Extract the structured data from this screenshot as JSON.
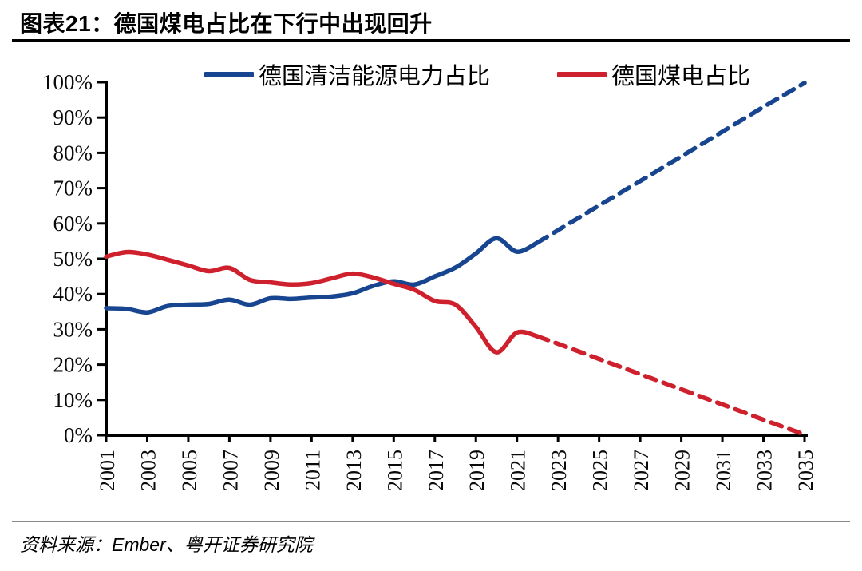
{
  "header": {
    "title": "图表21：德国煤电占比在下行中出现回升"
  },
  "legend": {
    "items": [
      {
        "label": "德国清洁能源电力占比",
        "color": "#17458f"
      },
      {
        "label": "德国煤电占比",
        "color": "#ce202d"
      }
    ]
  },
  "footer": {
    "source": "资料来源：Ember、粤开证券研究院"
  },
  "chart_data": {
    "type": "line",
    "title": "图表21：德国煤电占比在下行中出现回升",
    "xlabel": "",
    "ylabel": "",
    "xlim": [
      2001,
      2035
    ],
    "ylim": [
      0,
      100
    ],
    "grid": false,
    "legend_position": "top",
    "ytick_labels": [
      "0%",
      "10%",
      "20%",
      "30%",
      "40%",
      "50%",
      "60%",
      "70%",
      "80%",
      "90%",
      "100%"
    ],
    "xtick_labels": [
      "2001",
      "2003",
      "2005",
      "2007",
      "2009",
      "2011",
      "2013",
      "2015",
      "2017",
      "2019",
      "2021",
      "2023",
      "2025",
      "2027",
      "2029",
      "2031",
      "2033",
      "2035"
    ],
    "series": [
      {
        "name": "德国清洁能源电力占比",
        "color": "#17458f",
        "solid": {
          "x": [
            2001,
            2002,
            2003,
            2004,
            2005,
            2006,
            2007,
            2008,
            2009,
            2010,
            2011,
            2012,
            2013,
            2014,
            2015,
            2016,
            2017,
            2018,
            2019,
            2020,
            2021,
            2022
          ],
          "y": [
            36.0,
            35.8,
            34.8,
            36.6,
            37.0,
            37.2,
            38.4,
            37.0,
            38.8,
            38.6,
            39.0,
            39.3,
            40.2,
            42.3,
            43.6,
            42.7,
            45.0,
            47.5,
            51.5,
            55.8,
            52.0,
            54.6
          ]
        },
        "dashed": {
          "x": [
            2022,
            2023,
            2025,
            2027,
            2029,
            2031,
            2033,
            2035
          ],
          "y": [
            54.6,
            58.1,
            65.1,
            72.0,
            79.0,
            86.0,
            93.0,
            99.8
          ]
        }
      },
      {
        "name": "德国煤电占比",
        "color": "#ce202d",
        "solid": {
          "x": [
            2001,
            2002,
            2003,
            2004,
            2005,
            2006,
            2007,
            2008,
            2009,
            2010,
            2011,
            2012,
            2013,
            2014,
            2015,
            2016,
            2017,
            2018,
            2019,
            2020,
            2021,
            2022
          ],
          "y": [
            50.6,
            51.9,
            51.2,
            49.7,
            48.1,
            46.5,
            47.4,
            44.0,
            43.3,
            42.7,
            43.1,
            44.5,
            45.8,
            44.7,
            42.9,
            41.2,
            38.0,
            37.0,
            30.7,
            23.5,
            29.1,
            28.0
          ]
        },
        "dashed": {
          "x": [
            2022,
            2023,
            2025,
            2027,
            2029,
            2031,
            2033,
            2035
          ],
          "y": [
            28.0,
            25.9,
            21.6,
            17.3,
            13.0,
            8.7,
            4.4,
            0.2
          ]
        }
      }
    ]
  }
}
